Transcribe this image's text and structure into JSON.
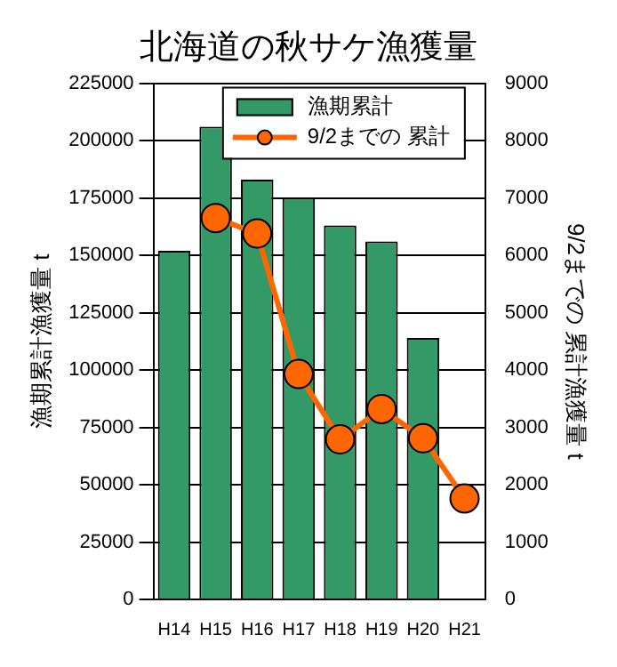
{
  "chart_data": {
    "type": "bar",
    "title": "北海道の秋サケ漁獲量",
    "ylabel": "漁期累計漁獲量 t",
    "y2label": "9/2までの 累計漁獲量 t",
    "categories": [
      "H14",
      "H15",
      "H16",
      "H17",
      "H18",
      "H19",
      "H20",
      "H21"
    ],
    "series": [
      {
        "name": "漁期累計",
        "color": "#339966",
        "values": [
          152000,
          206000,
          183000,
          175000,
          163000,
          156000,
          114000,
          null
        ]
      },
      {
        "name": "9/2までの 累計",
        "type": "line",
        "axis": "y2",
        "color": "#ff6600",
        "marker": "circle",
        "values": [
          null,
          6650,
          6380,
          3930,
          2790,
          3320,
          2810,
          1760
        ]
      }
    ],
    "ylim": [
      0,
      225000
    ],
    "yticks": [
      0,
      25000,
      50000,
      75000,
      100000,
      125000,
      150000,
      175000,
      200000,
      225000
    ],
    "y2lim": [
      0,
      9000
    ],
    "y2ticks": [
      0,
      1000,
      2000,
      3000,
      4000,
      5000,
      6000,
      7000,
      8000,
      9000
    ],
    "grid": "y",
    "legend": "top right"
  }
}
